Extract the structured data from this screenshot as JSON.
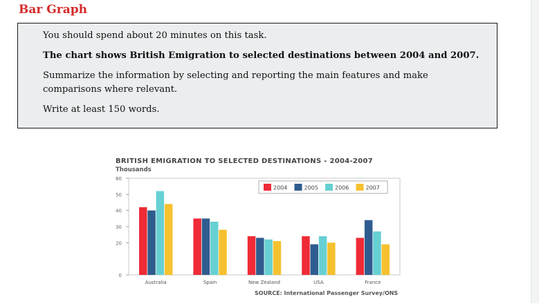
{
  "page": {
    "title": "Bar Graph"
  },
  "task": {
    "line1": "You should spend about 20 minutes on this task.",
    "line2": "The chart shows British Emigration to selected destinations between 2004 and 2007.",
    "line3": "Summarize the information by selecting and reporting the main features and make comparisons where relevant.",
    "line4": "Write at least 150 words."
  },
  "colors": {
    "title_red": "#d42a2a",
    "s2004": "#ee2b36",
    "s2005": "#2f5c8e",
    "s2006": "#67d0d2",
    "s2007": "#f6c12f"
  },
  "chart_data": {
    "type": "bar",
    "title": "BRITISH EMIGRATION TO SELECTED DESTINATIONS - 2004-2007",
    "ylabel": "Thousands",
    "categories": [
      "Australia",
      "Spain",
      "New Zealand",
      "USA",
      "France"
    ],
    "series": [
      {
        "name": "2004",
        "values": [
          42,
          35,
          24,
          24,
          23
        ]
      },
      {
        "name": "2005",
        "values": [
          40,
          35,
          23,
          19,
          34
        ]
      },
      {
        "name": "2006",
        "values": [
          52,
          33,
          22,
          24,
          27
        ]
      },
      {
        "name": "2007",
        "values": [
          44,
          28,
          21,
          20,
          19
        ]
      }
    ],
    "ylim": [
      0,
      60
    ],
    "yticks": [
      "0",
      "20",
      "30",
      "40",
      "50",
      "60"
    ],
    "ytick_values": [
      0,
      20,
      30,
      40,
      50,
      60
    ],
    "legend_position": "top-right",
    "source": "SOURCE: International Passenger Survey/ONS"
  }
}
